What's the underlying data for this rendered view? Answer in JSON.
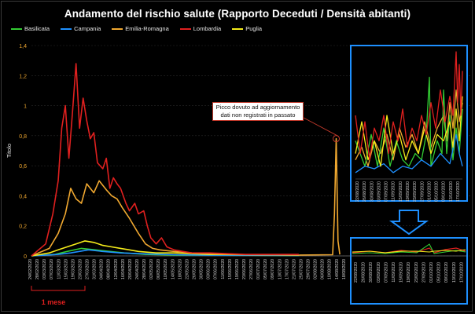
{
  "chart_data": {
    "type": "line",
    "title": "Andamento del rischio salute (Rapporto Deceduti / Densità abitanti)",
    "ylabel": "Titolo",
    "ylim": [
      0,
      1.4
    ],
    "y_ticks": [
      "0",
      "0,2",
      "0,4",
      "0,6",
      "0,8",
      "1",
      "1,2",
      "1,4"
    ],
    "x_start": "2020-02-24",
    "x_end": "2020-10-18",
    "x_tick_labels": [
      "24/02/2020",
      "28/02/2020",
      "03/03/2020",
      "07/03/2020",
      "11/03/2020",
      "15/03/2020",
      "19/03/2020",
      "23/03/2020",
      "27/03/2020",
      "31/03/2020",
      "04/04/2020",
      "08/04/2020",
      "12/04/2020",
      "16/04/2020",
      "20/04/2020",
      "24/04/2020",
      "28/04/2020",
      "02/05/2020",
      "06/05/2020",
      "10/05/2020",
      "14/05/2020",
      "18/05/2020",
      "22/05/2020",
      "26/05/2020",
      "30/05/2020",
      "03/06/2020",
      "07/06/2020",
      "11/06/2020",
      "15/06/2020",
      "19/06/2020",
      "23/06/2020",
      "27/06/2020",
      "01/07/2020",
      "05/07/2020",
      "09/07/2020",
      "13/07/2020",
      "17/07/2020",
      "21/07/2020",
      "25/07/2020",
      "29/07/2020",
      "02/08/2020",
      "06/08/2020",
      "10/08/2020",
      "14/08/2020",
      "18/08/2020"
    ],
    "inset_tick_labels": [
      "22/08/2020",
      "26/08/2020",
      "30/08/2020",
      "03/09/2020",
      "07/09/2020",
      "11/09/2020",
      "15/09/2020",
      "19/09/2020",
      "23/09/2020",
      "27/09/2020",
      "01/10/2020",
      "05/10/2020",
      "09/10/2020",
      "13/10/2020",
      "17/10/2020"
    ],
    "legend_position": "top",
    "series": [
      {
        "name": "Basilicata",
        "color": "#33cc33",
        "values": [
          [
            0,
            0
          ],
          [
            13,
            0.01
          ],
          [
            20,
            0.03
          ],
          [
            28,
            0.05
          ],
          [
            36,
            0.04
          ],
          [
            44,
            0.03
          ],
          [
            52,
            0.02
          ],
          [
            64,
            0.01
          ],
          [
            80,
            0.005
          ],
          [
            100,
            0.005
          ],
          [
            150,
            0.002
          ],
          [
            200,
            0.005
          ],
          [
            220,
            0.05
          ],
          [
            231,
            0.01
          ]
        ]
      },
      {
        "name": "Campania",
        "color": "#1e90ff",
        "values": [
          [
            0,
            0
          ],
          [
            15,
            0.01
          ],
          [
            22,
            0.02
          ],
          [
            32,
            0.04
          ],
          [
            40,
            0.03
          ],
          [
            50,
            0.02
          ],
          [
            60,
            0.015
          ],
          [
            80,
            0.008
          ],
          [
            100,
            0.005
          ],
          [
            150,
            0.003
          ],
          [
            200,
            0.005
          ],
          [
            220,
            0.02
          ],
          [
            231,
            0.03
          ]
        ]
      },
      {
        "name": "Emilia-Romagna",
        "color": "#f0a830",
        "values": [
          [
            0,
            0
          ],
          [
            10,
            0.05
          ],
          [
            15,
            0.15
          ],
          [
            19,
            0.28
          ],
          [
            22,
            0.45
          ],
          [
            25,
            0.38
          ],
          [
            28,
            0.35
          ],
          [
            31,
            0.48
          ],
          [
            35,
            0.42
          ],
          [
            38,
            0.5
          ],
          [
            42,
            0.44
          ],
          [
            45,
            0.4
          ],
          [
            48,
            0.38
          ],
          [
            51,
            0.32
          ],
          [
            55,
            0.25
          ],
          [
            60,
            0.15
          ],
          [
            64,
            0.08
          ],
          [
            68,
            0.05
          ],
          [
            72,
            0.04
          ],
          [
            80,
            0.03
          ],
          [
            90,
            0.02
          ],
          [
            110,
            0.01
          ],
          [
            150,
            0.005
          ],
          [
            169,
            0.008
          ],
          [
            170,
            0.28
          ],
          [
            171,
            0.78
          ],
          [
            172,
            0.1
          ],
          [
            173,
            0.01
          ],
          [
            200,
            0.02
          ],
          [
            220,
            0.02
          ],
          [
            231,
            0.03
          ]
        ]
      },
      {
        "name": "Lombardia",
        "color": "#e0201f",
        "values": [
          [
            0,
            0
          ],
          [
            8,
            0.08
          ],
          [
            12,
            0.28
          ],
          [
            15,
            0.5
          ],
          [
            17,
            0.85
          ],
          [
            19,
            1.0
          ],
          [
            21,
            0.65
          ],
          [
            23,
            0.95
          ],
          [
            25,
            1.28
          ],
          [
            27,
            0.85
          ],
          [
            29,
            1.05
          ],
          [
            31,
            0.9
          ],
          [
            33,
            0.78
          ],
          [
            35,
            0.82
          ],
          [
            37,
            0.62
          ],
          [
            40,
            0.58
          ],
          [
            42,
            0.65
          ],
          [
            44,
            0.45
          ],
          [
            46,
            0.52
          ],
          [
            48,
            0.48
          ],
          [
            50,
            0.45
          ],
          [
            53,
            0.35
          ],
          [
            55,
            0.3
          ],
          [
            58,
            0.35
          ],
          [
            60,
            0.28
          ],
          [
            63,
            0.3
          ],
          [
            65,
            0.2
          ],
          [
            67,
            0.12
          ],
          [
            70,
            0.08
          ],
          [
            73,
            0.12
          ],
          [
            76,
            0.06
          ],
          [
            80,
            0.04
          ],
          [
            85,
            0.03
          ],
          [
            90,
            0.02
          ],
          [
            100,
            0.02
          ],
          [
            120,
            0.01
          ],
          [
            150,
            0.01
          ],
          [
            200,
            0.03
          ],
          [
            220,
            0.03
          ],
          [
            231,
            0.06
          ]
        ]
      },
      {
        "name": "Puglia",
        "color": "#f5ec1a",
        "values": [
          [
            0,
            0
          ],
          [
            10,
            0.02
          ],
          [
            15,
            0.04
          ],
          [
            20,
            0.06
          ],
          [
            25,
            0.08
          ],
          [
            30,
            0.1
          ],
          [
            35,
            0.09
          ],
          [
            40,
            0.07
          ],
          [
            45,
            0.06
          ],
          [
            50,
            0.05
          ],
          [
            55,
            0.04
          ],
          [
            60,
            0.03
          ],
          [
            70,
            0.02
          ],
          [
            80,
            0.02
          ],
          [
            100,
            0.01
          ],
          [
            150,
            0.005
          ],
          [
            200,
            0.015
          ],
          [
            220,
            0.02
          ],
          [
            231,
            0.03
          ]
        ]
      }
    ],
    "inset_series": [
      {
        "name": "Basilicata",
        "color": "#33cc33",
        "values": [
          [
            0,
            0.3
          ],
          [
            6,
            0.1
          ],
          [
            10,
            0.35
          ],
          [
            14,
            0.1
          ],
          [
            18,
            0.4
          ],
          [
            22,
            0.1
          ],
          [
            26,
            0.3
          ],
          [
            30,
            0.15
          ],
          [
            34,
            0.1
          ],
          [
            38,
            0.2
          ],
          [
            42,
            0.15
          ],
          [
            45,
            0.35
          ],
          [
            47,
            0.8
          ],
          [
            48,
            0.1
          ],
          [
            52,
            0.3
          ],
          [
            55,
            0.2
          ],
          [
            56,
            0.7
          ],
          [
            58,
            0.2
          ],
          [
            60,
            0.5
          ],
          [
            62,
            0.15
          ],
          [
            64,
            0.4
          ],
          [
            66,
            0.2
          ],
          [
            68,
            0.55
          ]
        ]
      },
      {
        "name": "Campania",
        "color": "#1e90ff",
        "values": [
          [
            0,
            0.05
          ],
          [
            6,
            0.1
          ],
          [
            12,
            0.08
          ],
          [
            18,
            0.12
          ],
          [
            24,
            0.05
          ],
          [
            30,
            0.1
          ],
          [
            36,
            0.08
          ],
          [
            42,
            0.15
          ],
          [
            48,
            0.1
          ],
          [
            54,
            0.2
          ],
          [
            60,
            0.12
          ],
          [
            64,
            0.35
          ],
          [
            66,
            0.2
          ],
          [
            68,
            0.1
          ]
        ]
      },
      {
        "name": "Emilia-Romagna",
        "color": "#f0a830",
        "values": [
          [
            0,
            0.15
          ],
          [
            4,
            0.25
          ],
          [
            8,
            0.1
          ],
          [
            12,
            0.3
          ],
          [
            16,
            0.2
          ],
          [
            20,
            0.35
          ],
          [
            24,
            0.15
          ],
          [
            28,
            0.4
          ],
          [
            32,
            0.25
          ],
          [
            36,
            0.35
          ],
          [
            40,
            0.2
          ],
          [
            44,
            0.45
          ],
          [
            48,
            0.25
          ],
          [
            52,
            0.4
          ],
          [
            56,
            0.5
          ],
          [
            58,
            0.3
          ],
          [
            60,
            0.6
          ],
          [
            62,
            0.4
          ],
          [
            64,
            0.7
          ],
          [
            66,
            0.45
          ],
          [
            68,
            0.6
          ]
        ]
      },
      {
        "name": "Lombardia",
        "color": "#e0201f",
        "values": [
          [
            0,
            0.5
          ],
          [
            3,
            0.2
          ],
          [
            6,
            0.45
          ],
          [
            9,
            0.15
          ],
          [
            12,
            0.4
          ],
          [
            15,
            0.3
          ],
          [
            18,
            0.5
          ],
          [
            21,
            0.2
          ],
          [
            24,
            0.45
          ],
          [
            27,
            0.3
          ],
          [
            30,
            0.55
          ],
          [
            33,
            0.25
          ],
          [
            36,
            0.4
          ],
          [
            39,
            0.3
          ],
          [
            42,
            0.5
          ],
          [
            45,
            0.35
          ],
          [
            48,
            0.6
          ],
          [
            51,
            0.4
          ],
          [
            54,
            0.7
          ],
          [
            57,
            0.45
          ],
          [
            60,
            0.65
          ],
          [
            62,
            0.5
          ],
          [
            64,
            1.0
          ],
          [
            65,
            0.6
          ],
          [
            66,
            0.9
          ],
          [
            67,
            0.5
          ],
          [
            68,
            0.85
          ]
        ]
      },
      {
        "name": "Puglia",
        "color": "#f5ec1a",
        "values": [
          [
            0,
            0.2
          ],
          [
            4,
            0.45
          ],
          [
            8,
            0.15
          ],
          [
            12,
            0.3
          ],
          [
            16,
            0.1
          ],
          [
            20,
            0.5
          ],
          [
            24,
            0.2
          ],
          [
            28,
            0.35
          ],
          [
            32,
            0.15
          ],
          [
            36,
            0.3
          ],
          [
            40,
            0.2
          ],
          [
            44,
            0.4
          ],
          [
            48,
            0.2
          ],
          [
            52,
            0.35
          ],
          [
            56,
            0.3
          ],
          [
            60,
            0.45
          ],
          [
            62,
            0.25
          ],
          [
            64,
            0.55
          ],
          [
            66,
            0.3
          ],
          [
            68,
            0.65
          ]
        ]
      }
    ],
    "annotations": {
      "peak_note": "Picco dovuto ad aggiornamento dati non registrati in passato",
      "period_label": "1 mese"
    }
  }
}
